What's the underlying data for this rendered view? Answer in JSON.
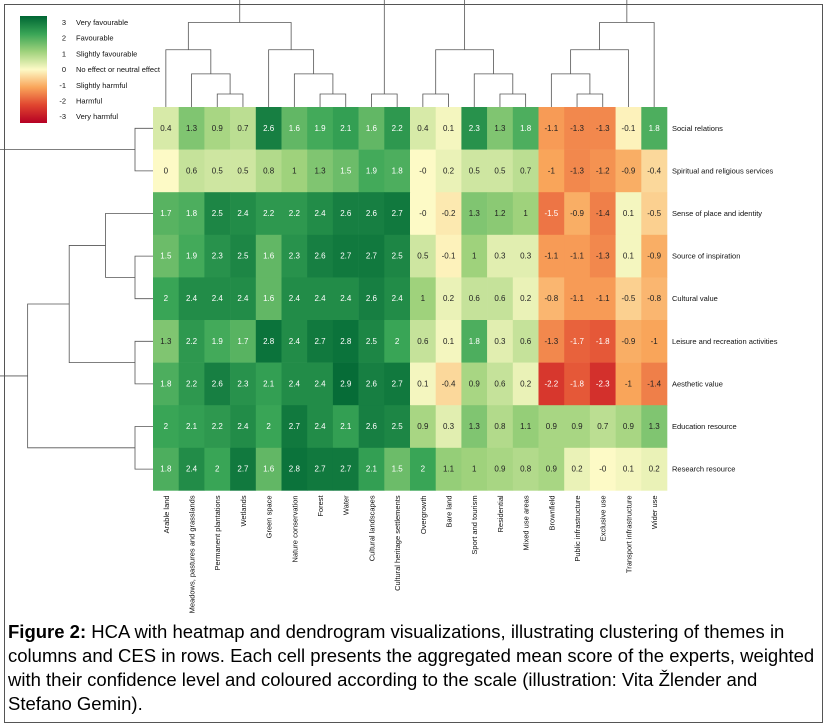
{
  "chart_data": {
    "type": "heatmap",
    "title": "",
    "xlabel": "",
    "ylabel": "",
    "columns": [
      "Arable land",
      "Meadows, pastures and grasslands",
      "Permanent plantations",
      "Wetlands",
      "Green space",
      "Nature conservation",
      "Forest",
      "Water",
      "Cultural landscapes",
      "Cultural heritage settlements",
      "Overgrowth",
      "Bare land",
      "Sport and tourism",
      "Residential",
      "Mixed use areas",
      "Brownfield",
      "Public infrastructure",
      "Exclusive use",
      "Transport infrastructure",
      "Wider use"
    ],
    "rows": [
      "Social relations",
      "Spiritual and religious services",
      "Sense of place and identity",
      "Source of inspiration",
      "Cultural value",
      "Leisure and recreation activities",
      "Aesthetic value",
      "Education resource",
      "Research resource"
    ],
    "values": [
      [
        "0.4",
        "1.3",
        "0.9",
        "0.7",
        "2.6",
        "1.6",
        "1.9",
        "2.1",
        "1.6",
        "2.2",
        "0.4",
        "0.1",
        "2.3",
        "1.3",
        "1.8",
        "-1.1",
        "-1.3",
        "-1.3",
        "-0.1",
        "1.8"
      ],
      [
        "0",
        "0.6",
        "0.5",
        "0.5",
        "0.8",
        "1",
        "1.3",
        "1.5",
        "1.9",
        "1.8",
        "-0",
        "0.2",
        "0.5",
        "0.5",
        "0.7",
        "-1",
        "-1.3",
        "-1.2",
        "-0.9",
        "-0.4"
      ],
      [
        "1.7",
        "1.8",
        "2.5",
        "2.4",
        "2.2",
        "2.2",
        "2.4",
        "2.6",
        "2.6",
        "2.7",
        "-0",
        "-0.2",
        "1.3",
        "1.2",
        "1",
        "-1.5",
        "-0.9",
        "-1.4",
        "0.1",
        "-0.5"
      ],
      [
        "1.5",
        "1.9",
        "2.3",
        "2.5",
        "1.6",
        "2.3",
        "2.6",
        "2.7",
        "2.7",
        "2.5",
        "0.5",
        "-0.1",
        "1",
        "0.3",
        "0.3",
        "-1.1",
        "-1.1",
        "-1.3",
        "0.1",
        "-0.9"
      ],
      [
        "2",
        "2.4",
        "2.4",
        "2.4",
        "1.6",
        "2.4",
        "2.4",
        "2.4",
        "2.6",
        "2.4",
        "1",
        "0.2",
        "0.6",
        "0.6",
        "0.2",
        "-0.8",
        "-1.1",
        "-1.1",
        "-0.5",
        "-0.8"
      ],
      [
        "1.3",
        "2.2",
        "1.9",
        "1.7",
        "2.8",
        "2.4",
        "2.7",
        "2.8",
        "2.5",
        "2",
        "0.6",
        "0.1",
        "1.8",
        "0.3",
        "0.6",
        "-1.3",
        "-1.7",
        "-1.8",
        "-0.9",
        "-1"
      ],
      [
        "1.8",
        "2.2",
        "2.6",
        "2.3",
        "2.1",
        "2.4",
        "2.4",
        "2.9",
        "2.6",
        "2.7",
        "0.1",
        "-0.4",
        "0.9",
        "0.6",
        "0.2",
        "-2.2",
        "-1.8",
        "-2.3",
        "-1",
        "-1.4"
      ],
      [
        "2",
        "2.1",
        "2.2",
        "2.4",
        "2",
        "2.7",
        "2.4",
        "2.1",
        "2.6",
        "2.5",
        "0.9",
        "0.3",
        "1.3",
        "0.8",
        "1.1",
        "0.9",
        "0.9",
        "0.7",
        "0.9",
        "1.3"
      ],
      [
        "1.8",
        "2.4",
        "2",
        "2.7",
        "1.6",
        "2.8",
        "2.7",
        "2.7",
        "2.1",
        "1.5",
        "2",
        "1.1",
        "1",
        "0.9",
        "0.8",
        "0.9",
        "0.2",
        "-0",
        "0.1",
        "0.2"
      ]
    ],
    "color_scale": {
      "min": -3,
      "max": 3,
      "stops": [
        "#b50024",
        "#e0452f",
        "#f9a55a",
        "#fdfac6",
        "#9fd27c",
        "#39a556",
        "#006634"
      ],
      "legend": [
        {
          "value": "3",
          "label": "Very favourable"
        },
        {
          "value": "2",
          "label": "Favourable"
        },
        {
          "value": "1",
          "label": "Slightly favourable"
        },
        {
          "value": "0",
          "label": "No effect or neutral effect"
        },
        {
          "value": "-1",
          "label": "Slightly harmful"
        },
        {
          "value": "-2",
          "label": "Harmful"
        },
        {
          "value": "-3",
          "label": "Very harmful"
        }
      ]
    },
    "legend_placement": "top-left",
    "dendrograms": [
      "columns",
      "rows"
    ]
  },
  "caption": {
    "label": "Figure 2:",
    "text": " HCA with heatmap and dendrogram visualizations, illustrating clustering of themes in columns and CES in rows. Each cell presents the aggregated mean score of the experts, weighted with their confidence level and coloured according to the scale (illustration: Vita Žlender and Stefano Gemin)."
  }
}
